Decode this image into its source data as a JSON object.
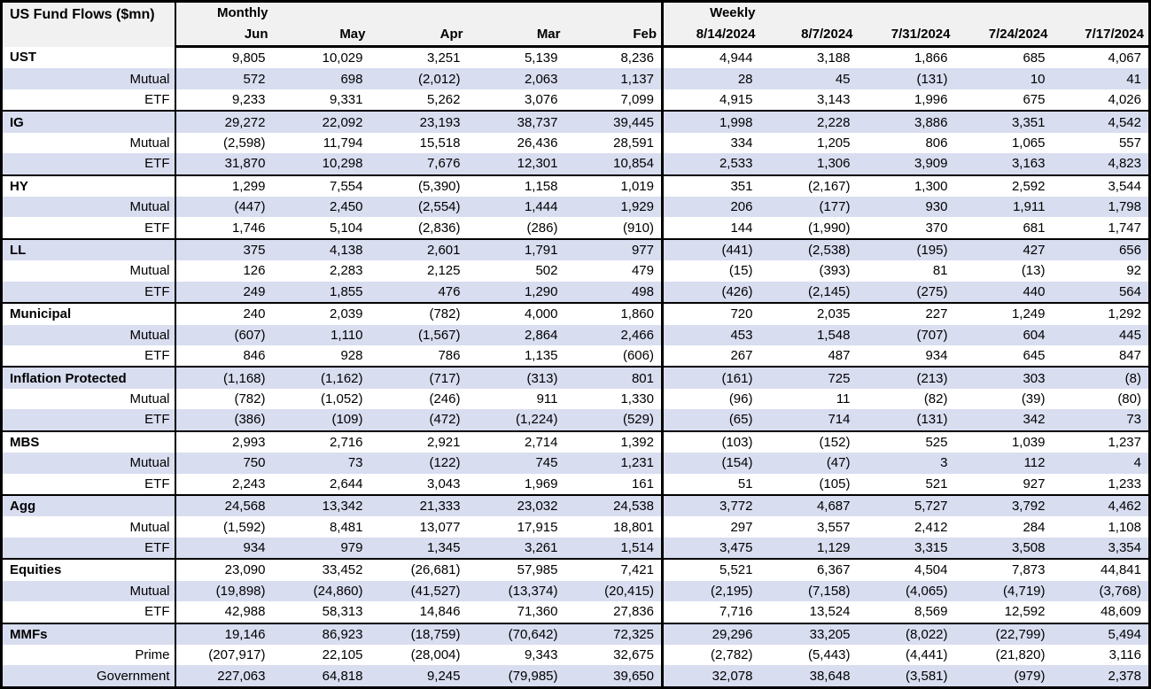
{
  "colors": {
    "stripe": "#D8DDF0",
    "header_bg": "#F1F1F1",
    "border": "#000000",
    "text": "#000000",
    "row_bg": "#FFFFFF"
  },
  "chart_data": {
    "type": "table",
    "title": "US Fund Flows ($mn)",
    "column_groups": [
      {
        "label": "Monthly",
        "columns": [
          "Jun",
          "May",
          "Apr",
          "Mar",
          "Feb"
        ]
      },
      {
        "label": "Weekly",
        "columns": [
          "8/14/2024",
          "8/7/2024",
          "7/31/2024",
          "7/24/2024",
          "7/17/2024"
        ]
      }
    ],
    "row_groups": [
      {
        "rows": [
          {
            "label": "UST",
            "header": true,
            "values": [
              "9,805",
              "10,029",
              "3,251",
              "5,139",
              "8,236",
              "4,944",
              "3,188",
              "1,866",
              "685",
              "4,067"
            ]
          },
          {
            "label": "Mutual",
            "header": false,
            "values": [
              "572",
              "698",
              "(2,012)",
              "2,063",
              "1,137",
              "28",
              "45",
              "(131)",
              "10",
              "41"
            ]
          },
          {
            "label": "ETF",
            "header": false,
            "values": [
              "9,233",
              "9,331",
              "5,262",
              "3,076",
              "7,099",
              "4,915",
              "3,143",
              "1,996",
              "675",
              "4,026"
            ]
          }
        ]
      },
      {
        "rows": [
          {
            "label": "IG",
            "header": true,
            "values": [
              "29,272",
              "22,092",
              "23,193",
              "38,737",
              "39,445",
              "1,998",
              "2,228",
              "3,886",
              "3,351",
              "4,542"
            ]
          },
          {
            "label": "Mutual",
            "header": false,
            "values": [
              "(2,598)",
              "11,794",
              "15,518",
              "26,436",
              "28,591",
              "334",
              "1,205",
              "806",
              "1,065",
              "557"
            ]
          },
          {
            "label": "ETF",
            "header": false,
            "values": [
              "31,870",
              "10,298",
              "7,676",
              "12,301",
              "10,854",
              "2,533",
              "1,306",
              "3,909",
              "3,163",
              "4,823"
            ]
          }
        ]
      },
      {
        "rows": [
          {
            "label": "HY",
            "header": true,
            "values": [
              "1,299",
              "7,554",
              "(5,390)",
              "1,158",
              "1,019",
              "351",
              "(2,167)",
              "1,300",
              "2,592",
              "3,544"
            ]
          },
          {
            "label": "Mutual",
            "header": false,
            "values": [
              "(447)",
              "2,450",
              "(2,554)",
              "1,444",
              "1,929",
              "206",
              "(177)",
              "930",
              "1,911",
              "1,798"
            ]
          },
          {
            "label": "ETF",
            "header": false,
            "values": [
              "1,746",
              "5,104",
              "(2,836)",
              "(286)",
              "(910)",
              "144",
              "(1,990)",
              "370",
              "681",
              "1,747"
            ]
          }
        ]
      },
      {
        "rows": [
          {
            "label": "LL",
            "header": true,
            "values": [
              "375",
              "4,138",
              "2,601",
              "1,791",
              "977",
              "(441)",
              "(2,538)",
              "(195)",
              "427",
              "656"
            ]
          },
          {
            "label": "Mutual",
            "header": false,
            "values": [
              "126",
              "2,283",
              "2,125",
              "502",
              "479",
              "(15)",
              "(393)",
              "81",
              "(13)",
              "92"
            ]
          },
          {
            "label": "ETF",
            "header": false,
            "values": [
              "249",
              "1,855",
              "476",
              "1,290",
              "498",
              "(426)",
              "(2,145)",
              "(275)",
              "440",
              "564"
            ]
          }
        ]
      },
      {
        "rows": [
          {
            "label": "Municipal",
            "header": true,
            "values": [
              "240",
              "2,039",
              "(782)",
              "4,000",
              "1,860",
              "720",
              "2,035",
              "227",
              "1,249",
              "1,292"
            ]
          },
          {
            "label": "Mutual",
            "header": false,
            "values": [
              "(607)",
              "1,110",
              "(1,567)",
              "2,864",
              "2,466",
              "453",
              "1,548",
              "(707)",
              "604",
              "445"
            ]
          },
          {
            "label": "ETF",
            "header": false,
            "values": [
              "846",
              "928",
              "786",
              "1,135",
              "(606)",
              "267",
              "487",
              "934",
              "645",
              "847"
            ]
          }
        ]
      },
      {
        "rows": [
          {
            "label": "Inflation Protected",
            "header": true,
            "values": [
              "(1,168)",
              "(1,162)",
              "(717)",
              "(313)",
              "801",
              "(161)",
              "725",
              "(213)",
              "303",
              "(8)"
            ]
          },
          {
            "label": "Mutual",
            "header": false,
            "values": [
              "(782)",
              "(1,052)",
              "(246)",
              "911",
              "1,330",
              "(96)",
              "11",
              "(82)",
              "(39)",
              "(80)"
            ]
          },
          {
            "label": "ETF",
            "header": false,
            "values": [
              "(386)",
              "(109)",
              "(472)",
              "(1,224)",
              "(529)",
              "(65)",
              "714",
              "(131)",
              "342",
              "73"
            ]
          }
        ]
      },
      {
        "rows": [
          {
            "label": "MBS",
            "header": true,
            "values": [
              "2,993",
              "2,716",
              "2,921",
              "2,714",
              "1,392",
              "(103)",
              "(152)",
              "525",
              "1,039",
              "1,237"
            ]
          },
          {
            "label": "Mutual",
            "header": false,
            "values": [
              "750",
              "73",
              "(122)",
              "745",
              "1,231",
              "(154)",
              "(47)",
              "3",
              "112",
              "4"
            ]
          },
          {
            "label": "ETF",
            "header": false,
            "values": [
              "2,243",
              "2,644",
              "3,043",
              "1,969",
              "161",
              "51",
              "(105)",
              "521",
              "927",
              "1,233"
            ]
          }
        ]
      },
      {
        "rows": [
          {
            "label": "Agg",
            "header": true,
            "values": [
              "24,568",
              "13,342",
              "21,333",
              "23,032",
              "24,538",
              "3,772",
              "4,687",
              "5,727",
              "3,792",
              "4,462"
            ]
          },
          {
            "label": "Mutual",
            "header": false,
            "values": [
              "(1,592)",
              "8,481",
              "13,077",
              "17,915",
              "18,801",
              "297",
              "3,557",
              "2,412",
              "284",
              "1,108"
            ]
          },
          {
            "label": "ETF",
            "header": false,
            "values": [
              "934",
              "979",
              "1,345",
              "3,261",
              "1,514",
              "3,475",
              "1,129",
              "3,315",
              "3,508",
              "3,354"
            ]
          }
        ]
      },
      {
        "rows": [
          {
            "label": "Equities",
            "header": true,
            "values": [
              "23,090",
              "33,452",
              "(26,681)",
              "57,985",
              "7,421",
              "5,521",
              "6,367",
              "4,504",
              "7,873",
              "44,841"
            ]
          },
          {
            "label": "Mutual",
            "header": false,
            "values": [
              "(19,898)",
              "(24,860)",
              "(41,527)",
              "(13,374)",
              "(20,415)",
              "(2,195)",
              "(7,158)",
              "(4,065)",
              "(4,719)",
              "(3,768)"
            ]
          },
          {
            "label": "ETF",
            "header": false,
            "values": [
              "42,988",
              "58,313",
              "14,846",
              "71,360",
              "27,836",
              "7,716",
              "13,524",
              "8,569",
              "12,592",
              "48,609"
            ]
          }
        ]
      },
      {
        "rows": [
          {
            "label": "MMFs",
            "header": true,
            "values": [
              "19,146",
              "86,923",
              "(18,759)",
              "(70,642)",
              "72,325",
              "29,296",
              "33,205",
              "(8,022)",
              "(22,799)",
              "5,494"
            ]
          },
          {
            "label": "Prime",
            "header": false,
            "values": [
              "(207,917)",
              "22,105",
              "(28,004)",
              "9,343",
              "32,675",
              "(2,782)",
              "(5,443)",
              "(4,441)",
              "(21,820)",
              "3,116"
            ]
          },
          {
            "label": "Government",
            "header": false,
            "values": [
              "227,063",
              "64,818",
              "9,245",
              "(79,985)",
              "39,650",
              "32,078",
              "38,648",
              "(3,581)",
              "(979)",
              "2,378"
            ]
          }
        ]
      }
    ]
  }
}
